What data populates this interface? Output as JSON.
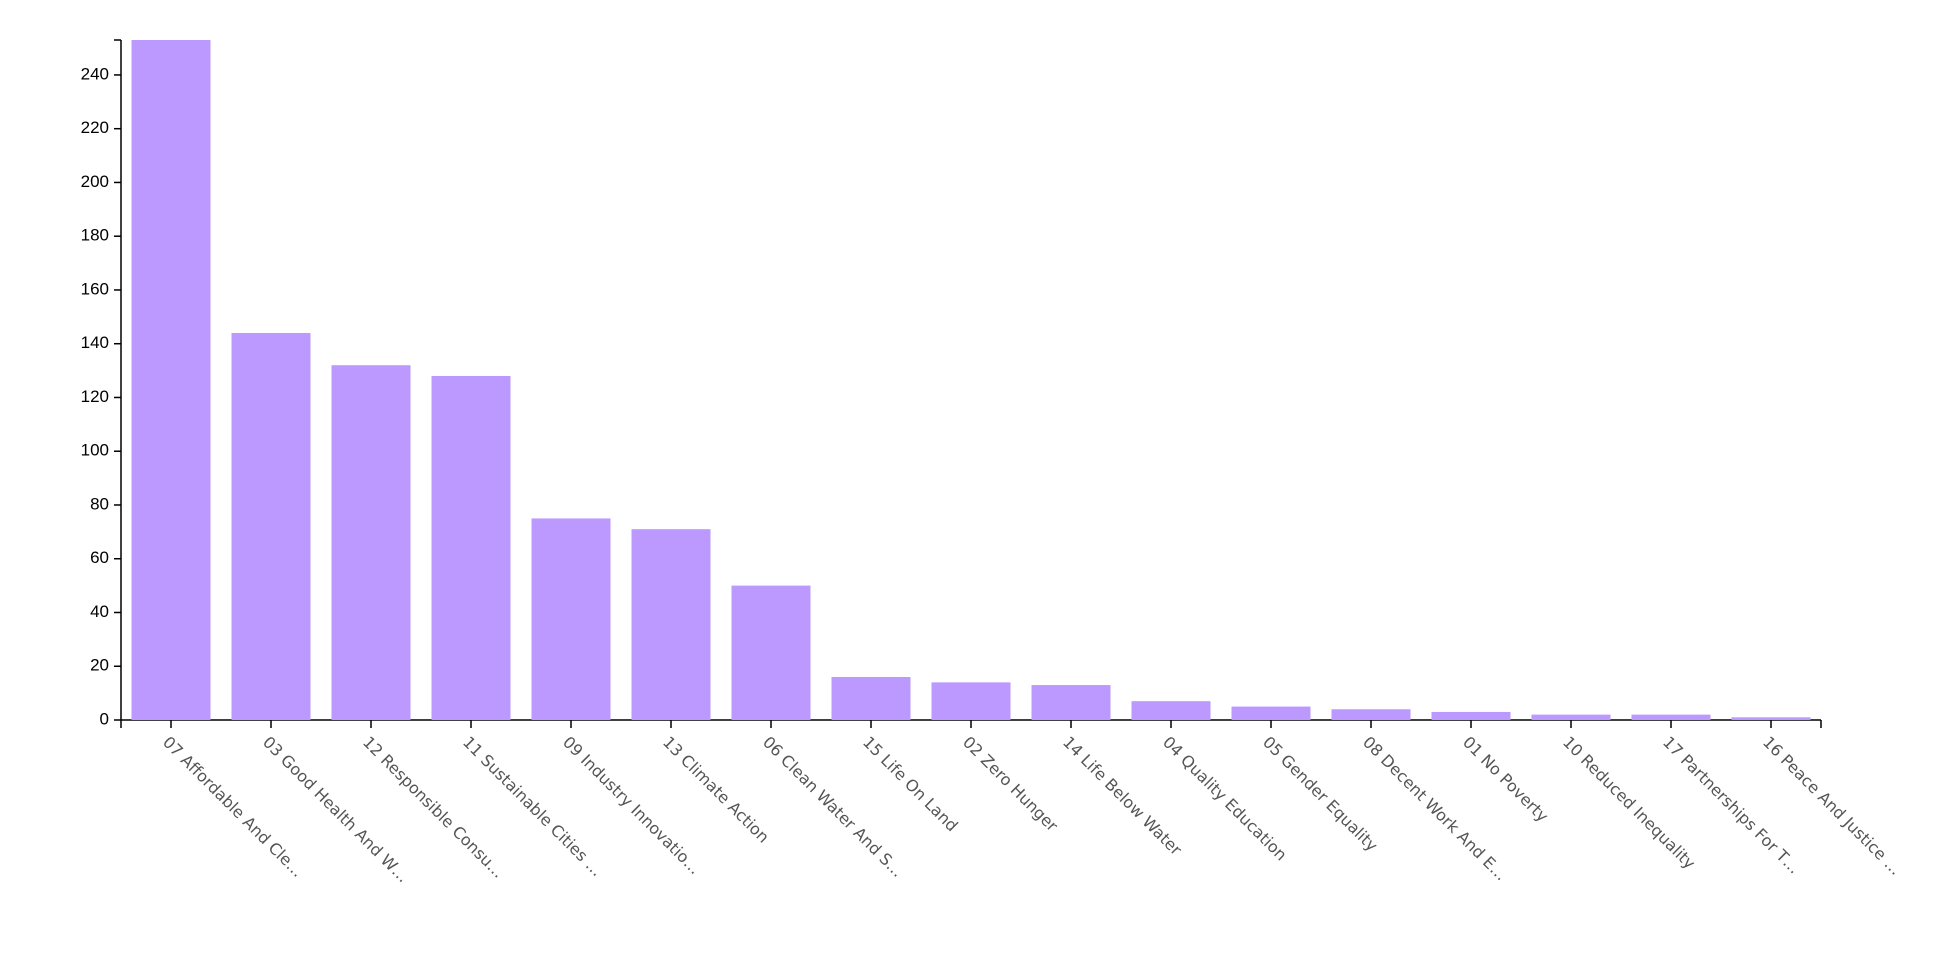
{
  "chart_data": {
    "type": "bar",
    "categories": [
      "07 Affordable And Cle…",
      "03 Good Health And W…",
      "12 Responsible Consu…",
      "11 Sustainable Cities …",
      "09 Industry Innovatio…",
      "13 Climate Action",
      "06 Clean Water And S…",
      "15 Life On Land",
      "02 Zero Hunger",
      "14 Life Below Water",
      "04 Quality Education",
      "05 Gender Equality",
      "08 Decent Work And E…",
      "01 No Poverty",
      "10 Reduced Inequality",
      "17 Partnerships For T…",
      "16 Peace And Justice …"
    ],
    "values": [
      253,
      144,
      132,
      128,
      75,
      71,
      50,
      16,
      14,
      13,
      7,
      5,
      4,
      3,
      2,
      2,
      1
    ],
    "color": "#bb99ff",
    "ylim": [
      0,
      253
    ],
    "yticks": [
      0,
      20,
      40,
      60,
      80,
      100,
      120,
      140,
      160,
      180,
      200,
      220,
      240
    ],
    "grid": false
  }
}
